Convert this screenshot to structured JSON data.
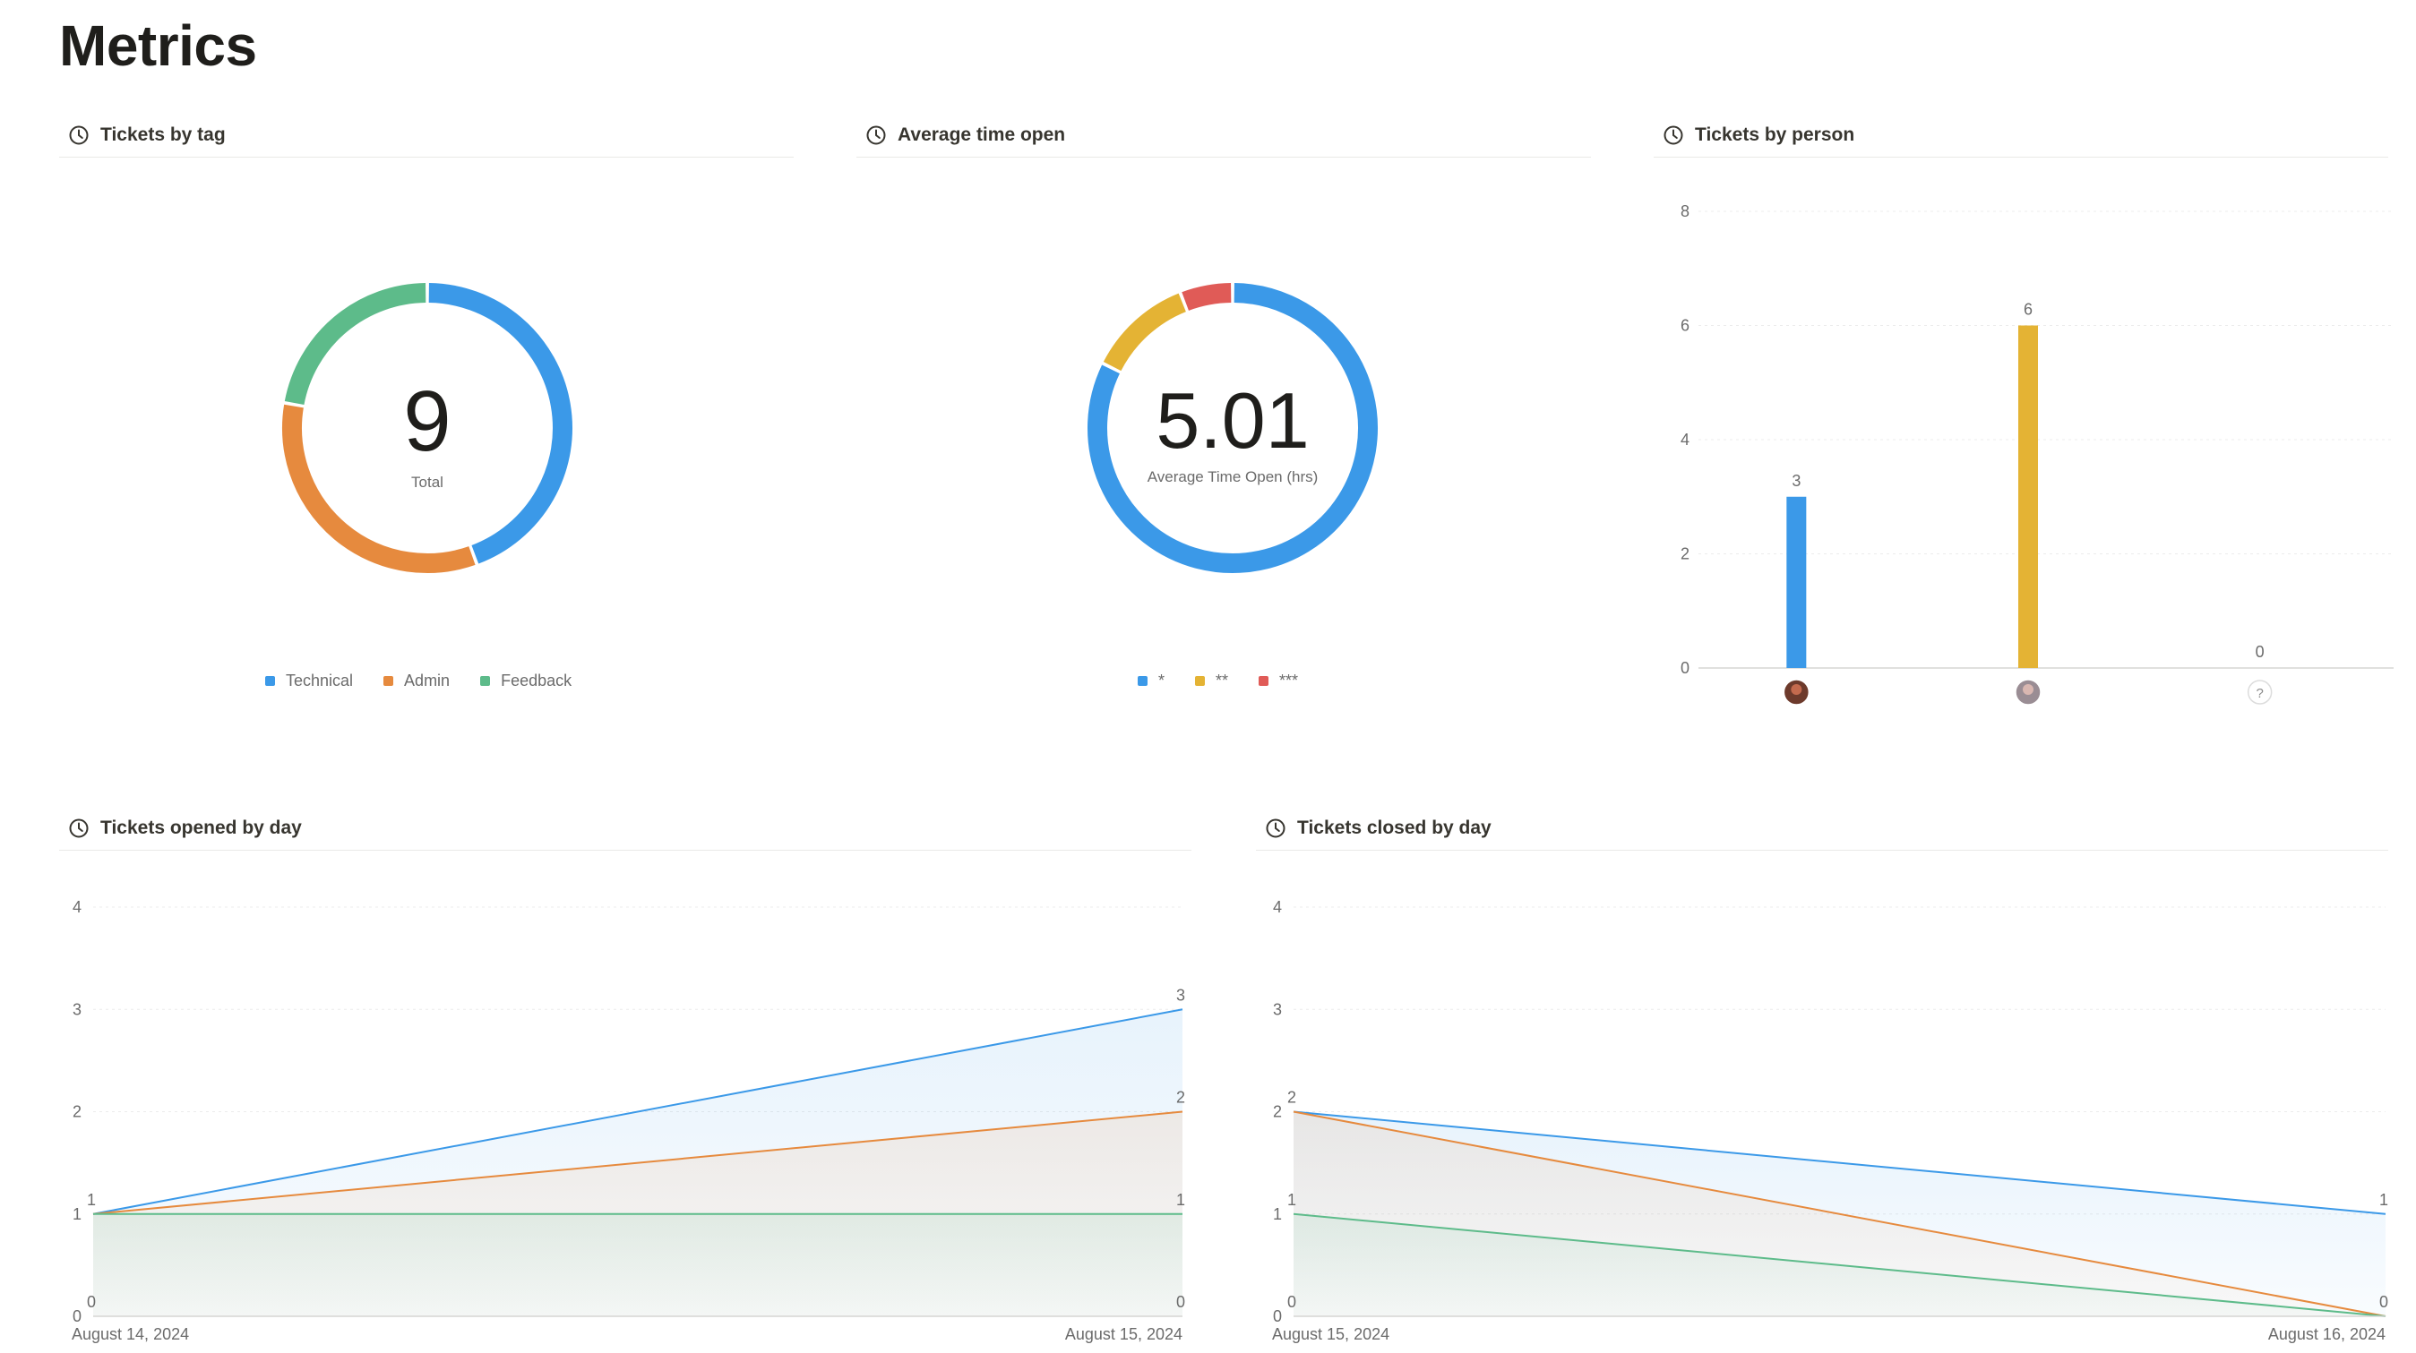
{
  "page": {
    "title": "Metrics"
  },
  "colors": {
    "blue": "#3b99e8",
    "orange": "#e68a3e",
    "green": "#5dbb8a",
    "yellow": "#e4b334",
    "red": "#e05b57",
    "grid": "#ececec",
    "axis": "#d6d6d4",
    "tick": "#6b6b6b"
  },
  "panels": {
    "tags": {
      "title": "Tickets by tag",
      "icon": "clock-icon"
    },
    "avg": {
      "title": "Average time open",
      "icon": "clock-icon"
    },
    "person": {
      "title": "Tickets by person",
      "icon": "clock-icon"
    },
    "opened": {
      "title": "Tickets opened by day",
      "icon": "clock-icon"
    },
    "closed": {
      "title": "Tickets closed by day",
      "icon": "clock-icon"
    }
  },
  "chart_data": [
    {
      "id": "tags",
      "type": "pie",
      "center_value": "9",
      "center_label": "Total",
      "slices": [
        {
          "label": "Technical",
          "value": 4,
          "color": "#3b99e8"
        },
        {
          "label": "Admin",
          "value": 3,
          "color": "#e68a3e"
        },
        {
          "label": "Feedback",
          "value": 2,
          "color": "#5dbb8a"
        }
      ],
      "legend_position": "bottom"
    },
    {
      "id": "avg",
      "type": "pie",
      "center_value": "5.01",
      "center_label": "Average Time Open (hrs)",
      "slices": [
        {
          "label": "*",
          "value": 7,
          "color": "#3b99e8"
        },
        {
          "label": "**",
          "value": 1,
          "color": "#e4b334"
        },
        {
          "label": "***",
          "value": 0.5,
          "color": "#e05b57"
        }
      ],
      "legend_position": "bottom"
    },
    {
      "id": "person",
      "type": "bar",
      "categories": [
        "person-1",
        "person-2",
        "unassigned"
      ],
      "category_icons": [
        "avatar",
        "avatar",
        "question-icon"
      ],
      "values": [
        3,
        6,
        0
      ],
      "bar_colors": [
        "#3b99e8",
        "#e4b334",
        "#cccccc"
      ],
      "ylim": [
        0,
        8
      ],
      "yticks": [
        0,
        2,
        4,
        6,
        8
      ],
      "grid": true
    },
    {
      "id": "opened",
      "type": "area",
      "x": [
        "August 14, 2024",
        "August 15, 2024"
      ],
      "series": [
        {
          "values": [
            1,
            3
          ],
          "color": "#3b99e8"
        },
        {
          "values": [
            1,
            2
          ],
          "color": "#e68a3e"
        },
        {
          "values": [
            1,
            1
          ],
          "color": "#5dbb8a"
        }
      ],
      "point_labels": [
        [
          "1",
          "0"
        ],
        [
          "3",
          "2",
          "1",
          "0"
        ]
      ],
      "ylim": [
        0,
        4
      ],
      "yticks": [
        0,
        1,
        2,
        3,
        4
      ],
      "grid": true
    },
    {
      "id": "closed",
      "type": "area",
      "x": [
        "August 15, 2024",
        "August 16, 2024"
      ],
      "series": [
        {
          "values": [
            2,
            1
          ],
          "color": "#3b99e8"
        },
        {
          "values": [
            2,
            0
          ],
          "color": "#e68a3e"
        },
        {
          "values": [
            1,
            0
          ],
          "color": "#5dbb8a"
        }
      ],
      "point_labels": [
        [
          "2",
          "1",
          "0"
        ],
        [
          "1",
          "0"
        ]
      ],
      "ylim": [
        0,
        4
      ],
      "yticks": [
        0,
        1,
        2,
        3,
        4
      ],
      "grid": true
    }
  ]
}
